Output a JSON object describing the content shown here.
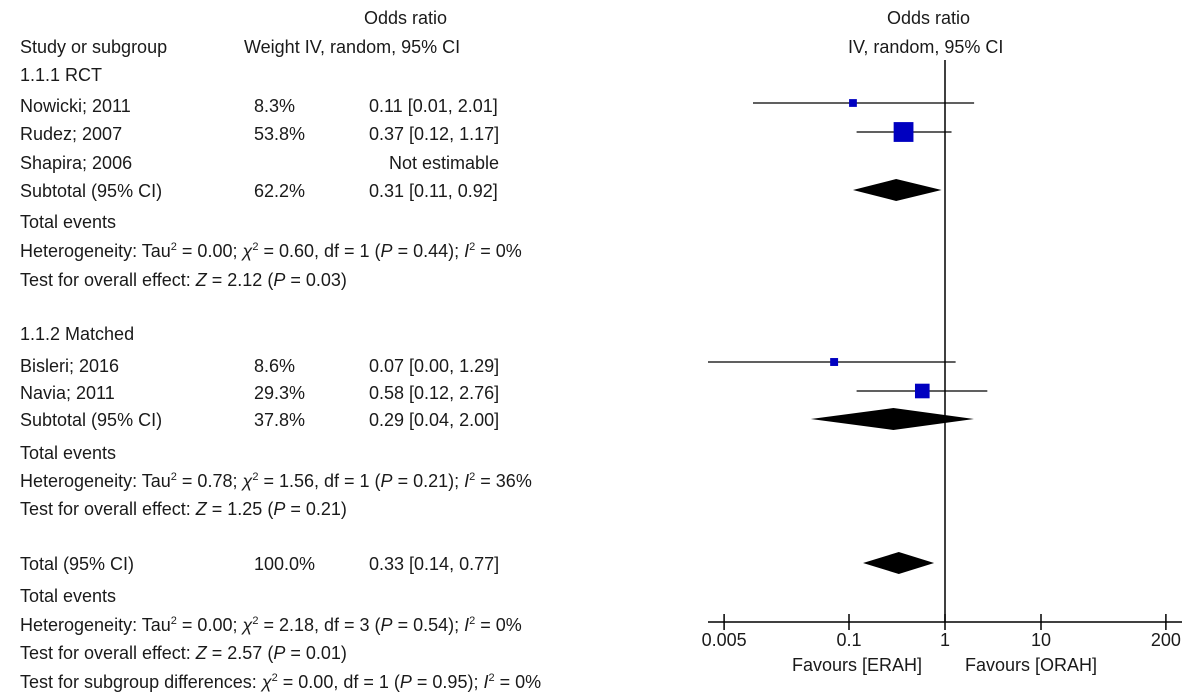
{
  "header": {
    "col_study": "Study or subgroup",
    "col_weight_ci_title": "Odds ratio",
    "col_weight_ci": "Weight IV, random, 95% CI",
    "col_plot_title": "Odds ratio",
    "col_plot_sub": "IV, random, 95% CI"
  },
  "groups": [
    {
      "title": "1.1.1 RCT",
      "rows": [
        {
          "study": "Nowicki; 2011",
          "weight": "8.3%",
          "ci": "0.11 [0.01, 2.01]"
        },
        {
          "study": "Rudez; 2007",
          "weight": "53.8%",
          "ci": "0.37 [0.12, 1.17]"
        },
        {
          "study": "Shapira; 2006",
          "weight": "",
          "ci": "Not estimable"
        }
      ],
      "subtotal": {
        "label": "Subtotal (95% CI)",
        "weight": "62.2%",
        "ci": "0.31 [0.11, 0.92]"
      },
      "total_events": "Total events",
      "heterogeneity": {
        "prefix": "Heterogeneity: Tau",
        "tau2": "= 0.00;",
        "chi2": "= 0.60, df = 1 (",
        "p": "= 0.44); ",
        "i2": "= 0%"
      },
      "overall": {
        "prefix": "Test for overall effect: ",
        "z": "= 2.12 (",
        "p": "= 0.03)"
      }
    },
    {
      "title": "1.1.2 Matched",
      "rows": [
        {
          "study": "Bisleri; 2016",
          "weight": "8.6%",
          "ci": "0.07 [0.00, 1.29]"
        },
        {
          "study": "Navia; 2011",
          "weight": "29.3%",
          "ci": "0.58 [0.12, 2.76]"
        }
      ],
      "subtotal": {
        "label": "Subtotal (95% CI)",
        "weight": "37.8%",
        "ci": "0.29 [0.04, 2.00]"
      },
      "total_events": "Total events",
      "heterogeneity": {
        "prefix": "Heterogeneity: Tau",
        "tau2": "= 0.78;",
        "chi2": "= 1.56, df = 1 (",
        "p": "= 0.21); ",
        "i2": "= 36%"
      },
      "overall": {
        "prefix": "Test for overall effect: ",
        "z": "= 1.25 (",
        "p": "= 0.21)"
      }
    }
  ],
  "total": {
    "label": "Total (95% CI)",
    "weight": "100.0%",
    "ci": "0.33 [0.14, 0.77]",
    "total_events": "Total events",
    "heterogeneity": {
      "prefix": "Heterogeneity: Tau",
      "tau2": "= 0.00;",
      "chi2": "= 2.18, df = 3 (",
      "p": "= 0.54); ",
      "i2": "= 0%"
    },
    "overall": {
      "prefix": "Test for overall effect: ",
      "z": "= 2.57 (",
      "p": "= 0.01)"
    },
    "subgroup": {
      "prefix": "Test for subgroup differences: ",
      "chi2": "= 0.00, df = 1 (",
      "p": "= 0.95); ",
      "i2": "= 0%"
    }
  },
  "symbols": {
    "chi": "χ",
    "sq": "2",
    "Z": "Z",
    "P": "P",
    "I": "I"
  },
  "colors": {
    "study_marker": "#0000c0",
    "diamond": "#000000",
    "lines": "#000000"
  },
  "chart_data": {
    "type": "forest",
    "x_scale": "log",
    "xlim": [
      0.005,
      200
    ],
    "ticks": [
      0.005,
      0.1,
      1,
      10,
      200
    ],
    "tick_labels": [
      "0.005",
      "0.1",
      "1",
      "10",
      "200"
    ],
    "xlabel_left": "Favours [ERAH]",
    "xlabel_right": "Favours [ORAH]",
    "null_line": 1,
    "studies": [
      {
        "name": "Nowicki; 2011",
        "or": 0.11,
        "lo": 0.01,
        "hi": 2.01,
        "weight": 8.3
      },
      {
        "name": "Rudez; 2007",
        "or": 0.37,
        "lo": 0.12,
        "hi": 1.17,
        "weight": 53.8
      },
      {
        "name": "Bisleri; 2016",
        "or": 0.07,
        "lo": 0.0,
        "hi": 1.29,
        "weight": 8.6
      },
      {
        "name": "Navia; 2011",
        "or": 0.58,
        "lo": 0.12,
        "hi": 2.76,
        "weight": 29.3
      }
    ],
    "pooled": [
      {
        "name": "Subtotal 1.1.1 RCT",
        "or": 0.31,
        "lo": 0.11,
        "hi": 0.92
      },
      {
        "name": "Subtotal 1.1.2 Matched",
        "or": 0.29,
        "lo": 0.04,
        "hi": 2.0
      },
      {
        "name": "Total",
        "or": 0.33,
        "lo": 0.14,
        "hi": 0.77
      }
    ]
  }
}
